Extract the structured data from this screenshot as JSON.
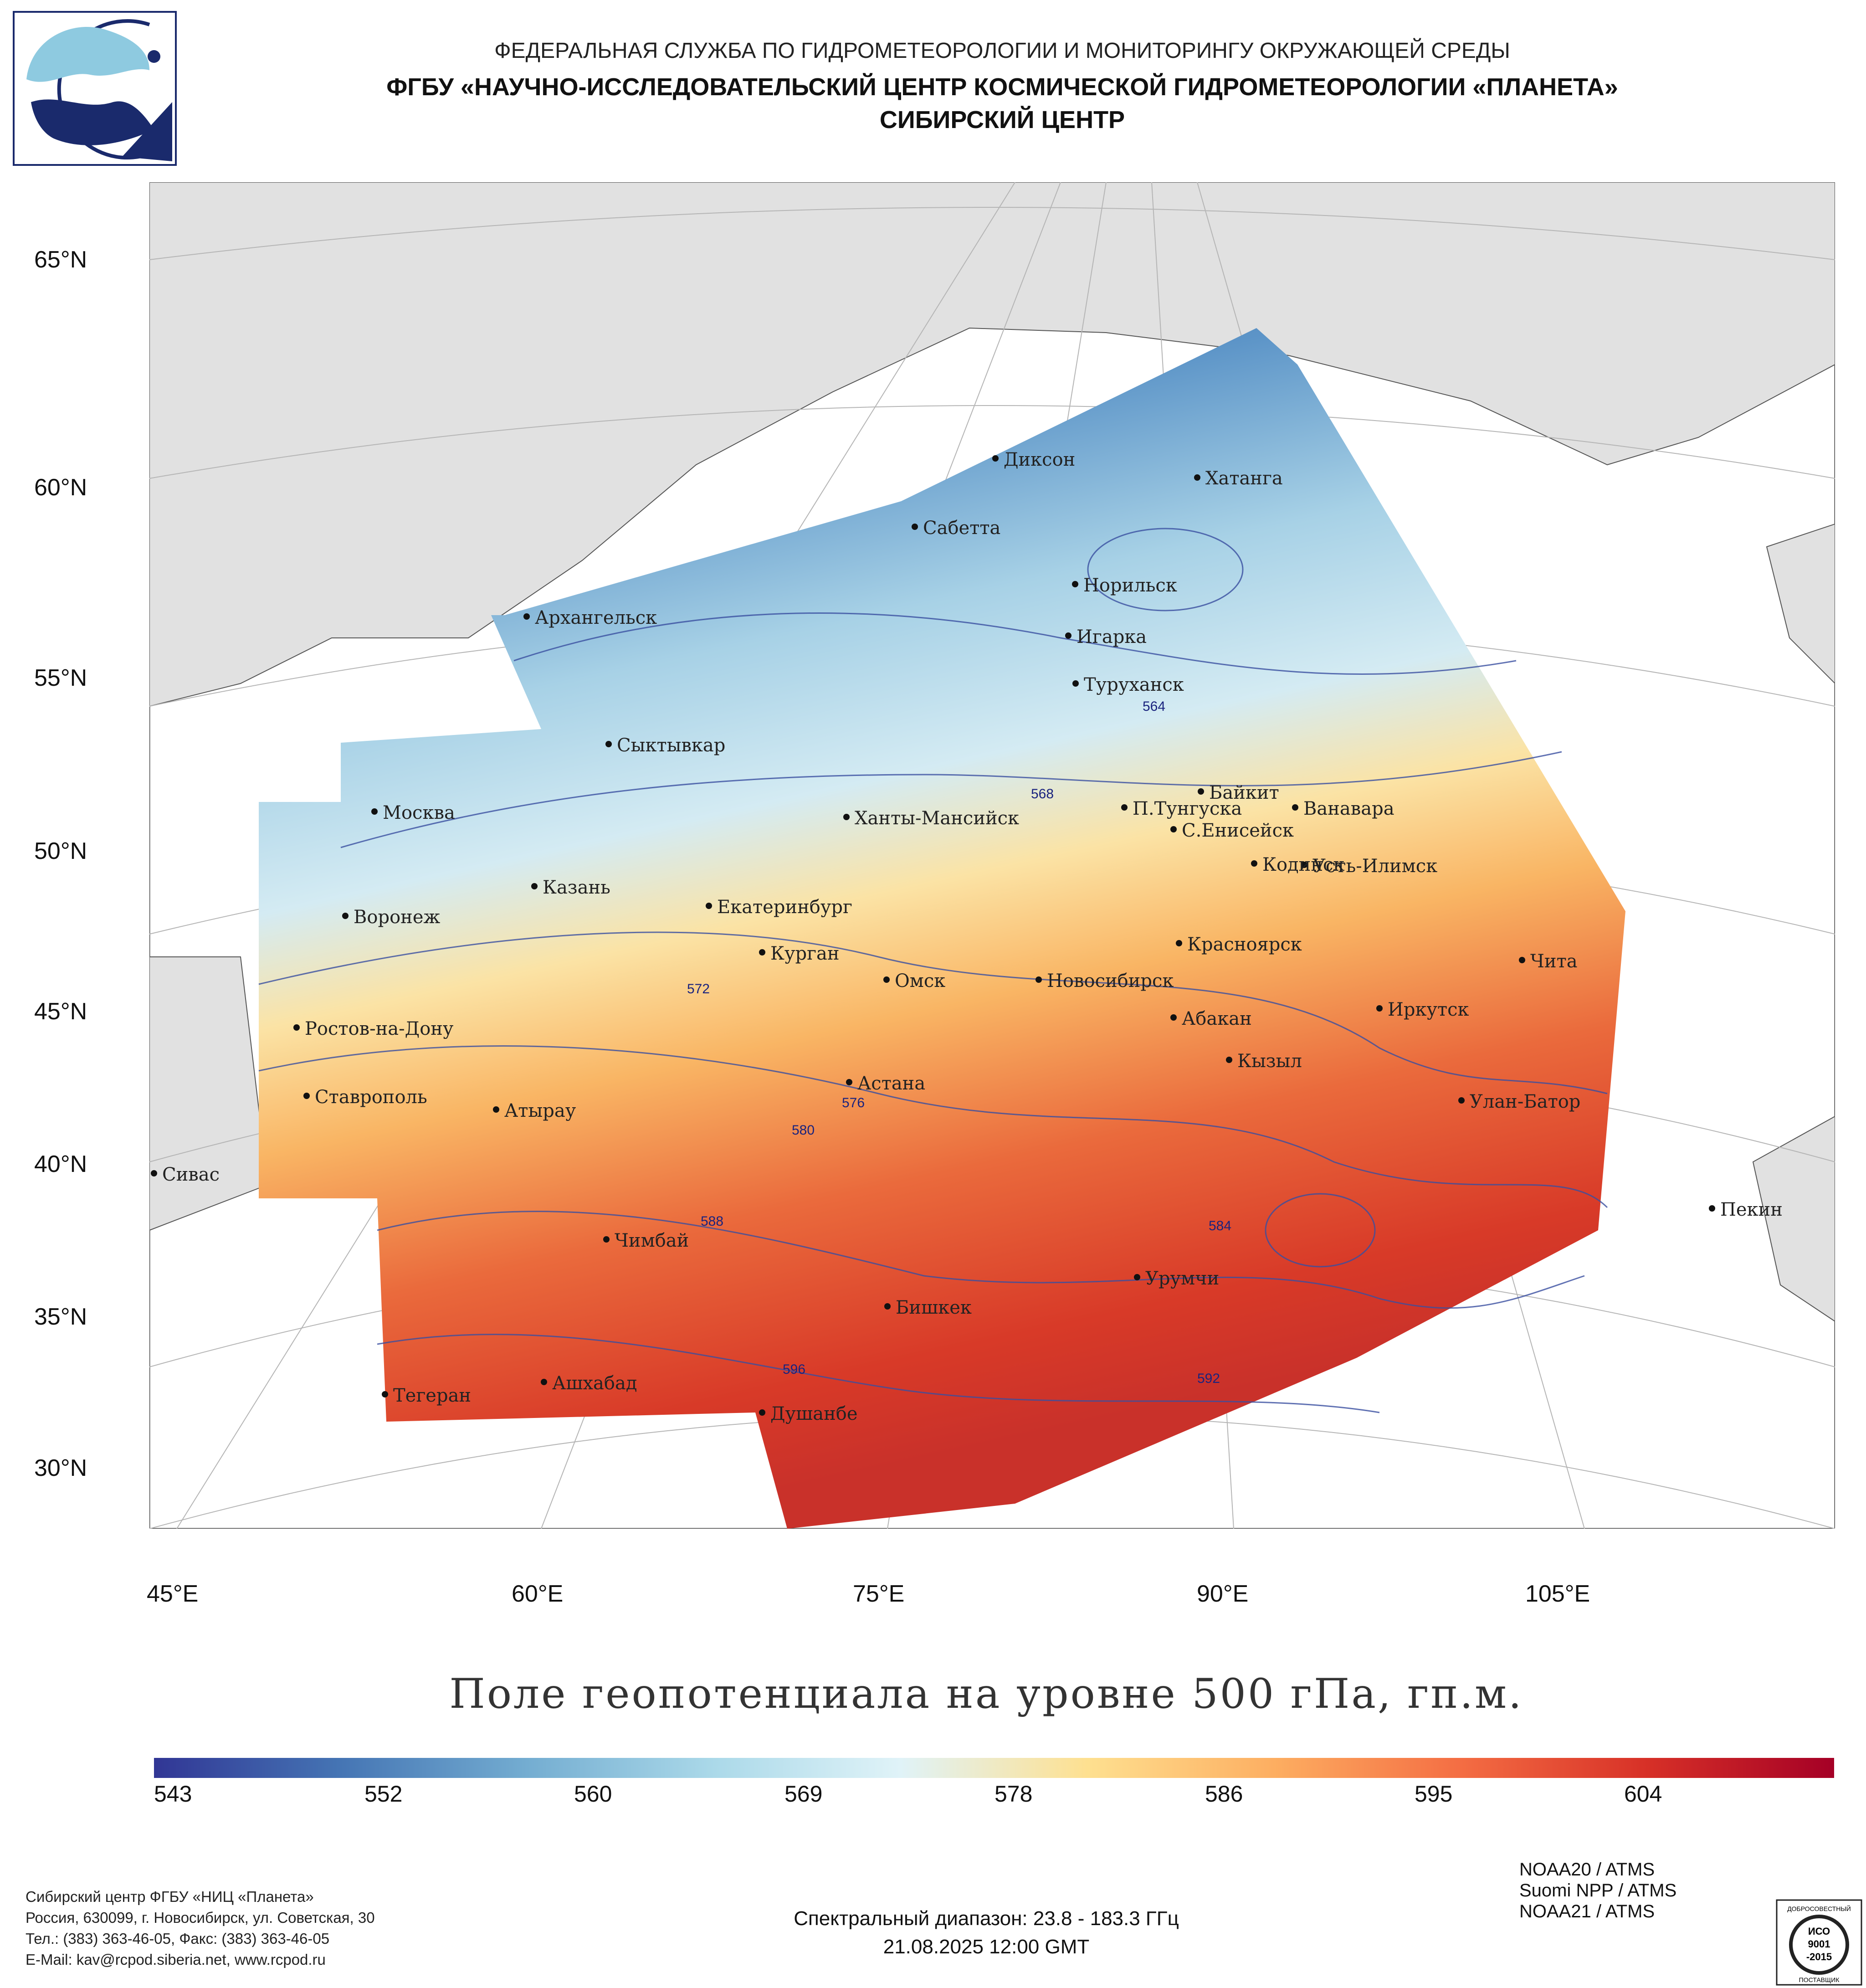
{
  "header": {
    "agency": "ФЕДЕРАЛЬНАЯ СЛУЖБА ПО ГИДРОМЕТЕОРОЛОГИИ И МОНИТОРИНГУ ОКРУЖАЮЩЕЙ СРЕДЫ",
    "institute": "ФГБУ «НАУЧНО-ИССЛЕДОВАТЕЛЬСКИЙ ЦЕНТР КОСМИЧЕСКОЙ ГИДРОМЕТЕОРОЛОГИИ «ПЛАНЕТА»",
    "center": "СИБИРСКИЙ ЦЕНТР"
  },
  "map": {
    "lat_labels": [
      "65°N",
      "60°N",
      "55°N",
      "50°N",
      "45°N",
      "40°N",
      "35°N",
      "30°N"
    ],
    "lon_labels": [
      "45°E",
      "60°E",
      "75°E",
      "90°E",
      "105°E"
    ],
    "cities": [
      {
        "name": "Диксон"
      },
      {
        "name": "Хатанга"
      },
      {
        "name": "Сабетта"
      },
      {
        "name": "Норильск"
      },
      {
        "name": "Архангельск"
      },
      {
        "name": "Игарка"
      },
      {
        "name": "Туруханск"
      },
      {
        "name": "Сыктывкар"
      },
      {
        "name": "Байкит"
      },
      {
        "name": "Москва"
      },
      {
        "name": "Ханты-Мансийск"
      },
      {
        "name": "П.Тунгуска"
      },
      {
        "name": "Ванавара"
      },
      {
        "name": "С.Енисейск"
      },
      {
        "name": "Кодинск"
      },
      {
        "name": "Усть-Илимск"
      },
      {
        "name": "Казань"
      },
      {
        "name": "Екатеринбург"
      },
      {
        "name": "Воронеж"
      },
      {
        "name": "Красноярск"
      },
      {
        "name": "Курган"
      },
      {
        "name": "Чита"
      },
      {
        "name": "Омск"
      },
      {
        "name": "Новосибирск"
      },
      {
        "name": "Иркутск"
      },
      {
        "name": "Абакан"
      },
      {
        "name": "Ростов-на-Дону"
      },
      {
        "name": "Кызыл"
      },
      {
        "name": "Астана"
      },
      {
        "name": "Ставрополь"
      },
      {
        "name": "Улан-Батор"
      },
      {
        "name": "Атырау"
      },
      {
        "name": "Сивас"
      },
      {
        "name": "Пекин"
      },
      {
        "name": "Чимбай"
      },
      {
        "name": "Урумчи"
      },
      {
        "name": "Бишкек"
      },
      {
        "name": "Ашхабад"
      },
      {
        "name": "Тегеран"
      },
      {
        "name": "Душанбе"
      }
    ],
    "contour_labels": [
      "564",
      "568",
      "572",
      "576",
      "580",
      "584",
      "588",
      "592",
      "596"
    ]
  },
  "title": "Поле геопотенциала на уровне 500 гПа, гп.м.",
  "colorbar": {
    "ticks": [
      "543",
      "552",
      "560",
      "569",
      "578",
      "586",
      "595",
      "604"
    ],
    "colors": [
      "#313695",
      "#4575b4",
      "#74add1",
      "#abd9e9",
      "#e0f3f8",
      "#fee090",
      "#fdae61",
      "#f46d43",
      "#d73027",
      "#a50026"
    ]
  },
  "footer": {
    "org_lines": [
      "Сибирский центр ФГБУ «НИЦ «Планета»",
      "Россия, 630099, г. Новосибирск, ул. Советская, 30",
      "Тел.: (383) 363-46-05, Факс: (383) 363-46-05",
      "E-Mail: kav@rcpod.siberia.net, www.rcpod.ru"
    ],
    "spectral": "Спектральный диапазон: 23.8 - 183.3 ГГц",
    "datetime": "21.08.2025 12:00 GMT",
    "satellites": [
      "NOAA20 / ATMS",
      "Suomi NPP / ATMS",
      "NOAA21 / ATMS"
    ],
    "iso": {
      "top": "ДОБРОСОВЕСТНЫЙ",
      "l1": "ИСО",
      "l2": "9001",
      "l3": "-2015",
      "bottom": "ПОСТАВЩИК"
    }
  }
}
